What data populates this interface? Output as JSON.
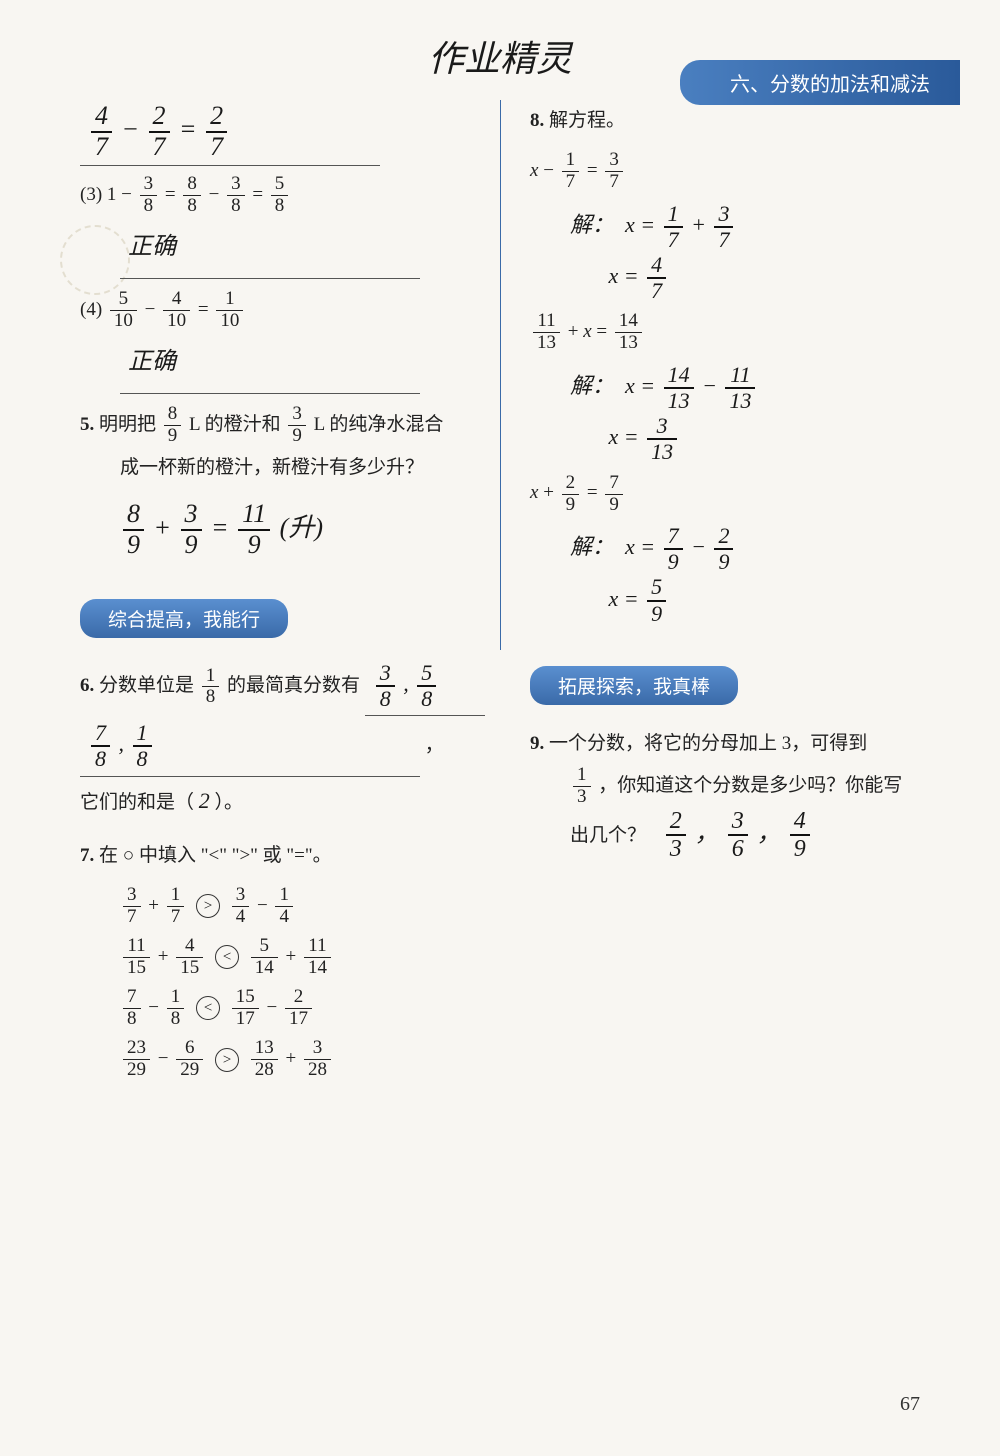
{
  "watermark": "作业精灵",
  "chapter_header": "六、分数的加法和减法",
  "page_number": "67",
  "sections": {
    "comprehensive": "综合提高，我能行",
    "extension": "拓展探索，我真棒"
  },
  "left": {
    "hw_top": "4/7 − 2/7 = 2/7",
    "q3_label": "(3)",
    "q3_eq": "1 − 3/8 = 8/8 − 3/8 = 5/8",
    "q3_ans": "正确",
    "q4_label": "(4)",
    "q4_eq": "5/10 − 4/10 = 1/10",
    "q4_ans": "正确",
    "q5_num": "5.",
    "q5_text_a": "明明把",
    "q5_frac1_n": "8",
    "q5_frac1_d": "9",
    "q5_text_b": "L 的橙汁和",
    "q5_frac2_n": "3",
    "q5_frac2_d": "9",
    "q5_text_c": "L 的纯净水混合",
    "q5_text_d": "成一杯新的橙汁，新橙汁有多少升？",
    "q5_hw": "8/9 + 3/9 = 11/9 (升)",
    "q6_num": "6.",
    "q6_text_a": "分数单位是",
    "q6_frac_n": "1",
    "q6_frac_d": "8",
    "q6_text_b": "的最简真分数有",
    "q6_ans1": "3/8 , 5/8",
    "q6_ans2": "7/8 , 1/8",
    "q6_text_c": "，",
    "q6_text_d": "它们的和是（",
    "q6_sum": "2",
    "q6_text_e": "）。",
    "q7_num": "7.",
    "q7_text": "在 ○ 中填入 \"<\" \">\" 或 \"=\"。",
    "q7_rows": [
      {
        "lhs": [
          "3",
          "7",
          "+",
          "1",
          "7"
        ],
        "sym": ">",
        "rhs": [
          "3",
          "4",
          "−",
          "1",
          "4"
        ]
      },
      {
        "lhs": [
          "11",
          "15",
          "+",
          "4",
          "15"
        ],
        "sym": "<",
        "rhs": [
          "5",
          "14",
          "+",
          "11",
          "14"
        ]
      },
      {
        "lhs": [
          "7",
          "8",
          "−",
          "1",
          "8"
        ],
        "sym": "<",
        "rhs": [
          "15",
          "17",
          "−",
          "2",
          "17"
        ]
      },
      {
        "lhs": [
          "23",
          "29",
          "−",
          "6",
          "29"
        ],
        "sym": ">",
        "rhs": [
          "13",
          "28",
          "+",
          "3",
          "28"
        ]
      }
    ]
  },
  "right": {
    "q8_num": "8.",
    "q8_text": "解方程。",
    "q8_eq1": "x − 1/7 = 3/7",
    "q8_sol1a": "解：  x = 1/7 + 3/7",
    "q8_sol1b": "x = 4/7",
    "q8_eq2": "11/13 + x = 14/13",
    "q8_sol2a": "解：  x = 14/13 − 11/13",
    "q8_sol2b": "x = 3/13",
    "q8_eq3": "x + 2/9 = 7/9",
    "q8_sol3a": "解：  x = 7/9 − 2/9",
    "q8_sol3b": "x = 5/9",
    "q9_num": "9.",
    "q9_text_a": "一个分数，将它的分母加上 3，可得到",
    "q9_frac_n": "1",
    "q9_frac_d": "3",
    "q9_text_b": "，你知道这个分数是多少吗？你能写",
    "q9_text_c": "出几个？",
    "q9_ans": "2/3 ， 3/6 ， 4/9"
  }
}
